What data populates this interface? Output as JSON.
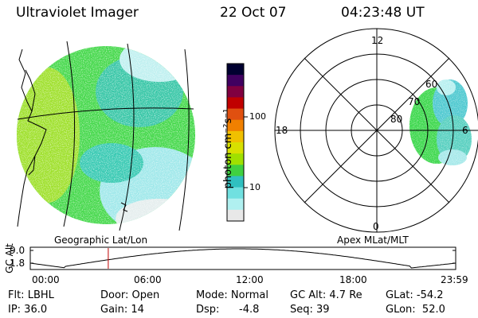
{
  "header": {
    "instrument": "Ultraviolet Imager",
    "date": "22 Oct 07",
    "time": "04:23:48 UT"
  },
  "colorbar": {
    "unit_label": "photon cm⁻²s⁻¹",
    "ticks": [
      "100",
      "10"
    ],
    "colors": [
      "#000030",
      "#400060",
      "#800040",
      "#c00000",
      "#e05010",
      "#f08000",
      "#f0c000",
      "#d8e000",
      "#a0e000",
      "#40d040",
      "#30c0c0",
      "#70e0e0",
      "#b0f0f0",
      "#e8e8e8"
    ]
  },
  "panels": {
    "left_title": "Geographic Lat/Lon",
    "right_title": "Apex MLat/MLT"
  },
  "polar": {
    "mlt_labels": {
      "top": "12",
      "left": "18",
      "right": "6",
      "bottom": "0"
    },
    "lat_labels": [
      "60",
      "70",
      "80"
    ]
  },
  "altitude_plot": {
    "ylabel": "GC Alt",
    "yticks": [
      "9.0",
      "1.8"
    ],
    "xticks": [
      "00:00",
      "06:00",
      "12:00",
      "18:00",
      "23:59"
    ],
    "marker_hour": 4.4
  },
  "footer": {
    "filter": "Flt: LBHL",
    "ip": "IP: 36.0",
    "door": "Door: Open",
    "gain": "Gain: 14",
    "mode": "Mode: Normal",
    "dsp": "Dsp:",
    "dsp_value": "-4.8",
    "gc_alt": "GC Alt: 4.7 Re",
    "seq": "Seq: 39",
    "glat": "GLat: -54.2",
    "glon": "GLon:  52.0"
  }
}
